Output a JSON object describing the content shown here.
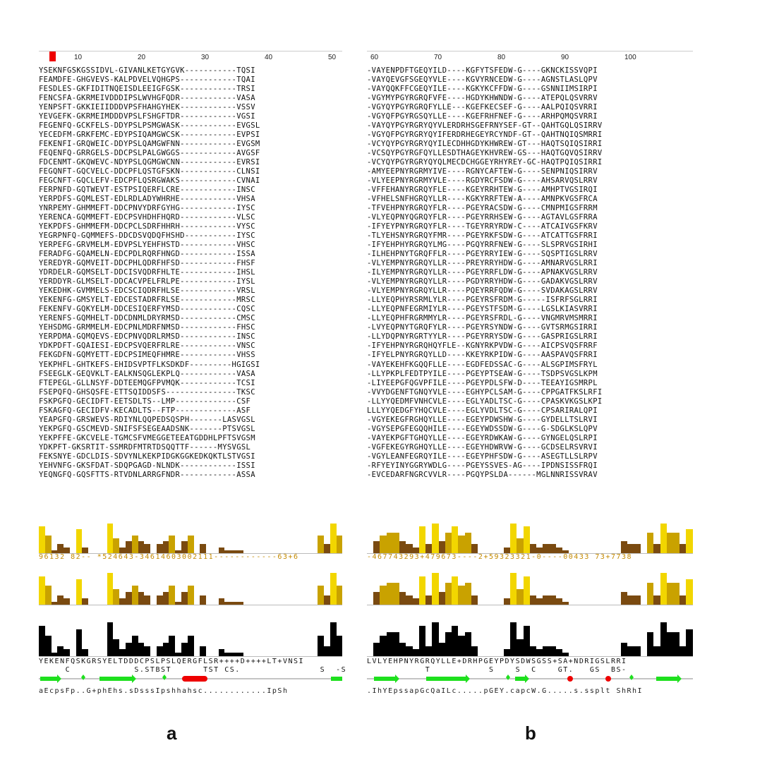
{
  "panels": {
    "a": {
      "label": "a",
      "ruler": [
        "10",
        "20",
        "30",
        "40",
        "50"
      ],
      "rows": [
        "YSEKNFGSKGSSIDVL-GIVANLKETGYGVK-----------TQSI",
        "FEAMDFE-GHGVEVS-KALPDVELVQHGPS------------TQAI",
        "FESDLES-GKFIDITNQEISDLEEIGFGSK------------TRSI",
        "FENCSFA-GKRMEIVDDDIPSLWVHGFQDR------------VASA",
        "YENPSFT-GKKIEIIDDDVPSFHAHGYHEK------------VSSV",
        "YEVGEFK-GKRMEIMDDDVPSLFSHGFTDR------------VGSI",
        "FEGENFQ-GCKFELS-DDYPSLPSMGWASK------------EVGSL",
        "YECEDFM-GRKFEMC-EDYPSIQAMGWCSK------------EVPSI",
        "FEKENFI-GRQWEIC-DDYPSLQAMGWFNN------------EVGSM",
        "FEQENFQ-GRRGELS-DDCPSLPALGWGGS------------AVGSF",
        "FDCENMT-GKQWEVC-NDYPSLQGMGWCNN------------EVRSI",
        "FEGQNFT-GQCVELC-DDCPFLQSTGFSKN------------CLNSI",
        "FEGCNFT-GQCLEFV-EDCPFLQSRGWAKS------------CVNAI",
        "FERPNFD-GQTWEVT-ESTPSIQERFLCRE------------INSC",
        "YERPDFS-GQMLEST-EDLRDLADYWHRHE------------VHSA",
        "YNRPEMY-GHMMEFT-DDCPNVYDRFGYHG------------IYSC",
        "YERENCA-GQMMEFT-EDCPSVHDHFHQRD------------VLSC",
        "YEKPDFS-GHMMEFM-DDCPCLSDRFHHRH------------VYSC",
        "YEGRPNFQ-GQMMEFS-DDCDSVQDQFHSHD-----------IYSC",
        "YERPEFG-GRVMELM-EDVPSLYEHFHSTD------------VHSC",
        "FERADFG-GQAMELN-EDCPDLRQRFHNGD------------ISSA",
        "YEREDYR-GQMVEIT-DDCPHLQDRFHFSD------------FHSF",
        "YDRDELR-GQMSELT-DDCISVQDRFHLTE------------IHSL",
        "YERDDYR-GLMSELT-DDCACVPELFRLPE------------IYSL",
        "YEKEDHK-GVMMELS-EDCSCIQDRFHLSE------------VRSL",
        "YEKENFG-GMSYELT-EDCESTADRFRLSE------------MRSC",
        "FEKENFV-GQKYELM-DDCESIQERFYMSD------------CQSC",
        "YERENFS-GQMHELT-DDCDNMLDRYRMSD------------CMSC",
        "YEHSDMG-GRMMELM-EDCPNLMDRFNMSD------------FHSC",
        "YERPDMA-GQMQEVS-EDCPNVQDRLRMSD------------INSC",
        "YDKPDFT-GQAIESI-EDCPSVQERFRLRE------------VNSC",
        "FEKGDFN-GQMYETT-EDCPSIMEQFHMRE------------VHSS",
        "YEKPHFL-GHTKEFS-EHIDSVPTFLKSDKDF---------HGIGSI",
        "FSEEGLK-GEQVKLT-EALKNSQGLEKPLQ------------VASA",
        "FTEPEGL-GLLNSYF-DDTEEMQGFPVMQK------------TCSI",
        "FSEPQFQ-GHSQSFE-ETTSQIDDSFS---------------TKSC",
        "FSKPGFQ-GECIDFT-EETSDLTS--LMP-------------CSF",
        "FSKAGFQ-GECIDFV-KECADLTS--FTP-------------ASF",
        "YEAPGFQ-GRSWEVS-RDIYNLQQPEDSQSPH-------LASVGSL",
        "YEKPGFQ-GSCMEVD-SNIFSFSEGEAADSNK-------PTSVGSL",
        "YEKPFFE-GKCVELE-TGMCSFVMEGGETEEATGDDHLPFTSVGSM",
        "YDKPFT-GKSRTIT-SSMRDFMTRTDSQQTTF------MYSVGSL",
        "FEKSNYE-GDCLDIS-SDVYNLKEKPIDGKGGKEDKQKTLSTVGSI",
        "YEHVNFG-GKSFDAT-SDQPGAGD-NLNDK------------ISSI",
        "YEQNGFQ-GQSFTTS-RTVDNLARRGFNDR------------ASSA"
      ],
      "hist_digits": "96132 82-- *524643-34614603002111------------63+6",
      "consensus": "YEKENFQSKGRSYELTDDDCPSLPSLQERGFLSR++++D++++LT+VNSI",
      "ss_text": "     C            S.STBST      TST CS.               S  -S  ",
      "footer": "aEcpsFp..G+phEhs.sDsssIpshhahsc............IpSh"
    },
    "b": {
      "label": "b",
      "ruler": [
        "60",
        "70",
        "80",
        "90",
        "100"
      ],
      "rows": [
        "-VAYENPDFTGEQYILD----KGFYTSFEDW-G----GKNCKISSVQPI",
        "-VAYQEVGFSGEQYVLE----KGVYRNCEDW-G----AGNSTLASLQPV",
        "-VAYQQKFFCGEQYILE----KGKYKCFFDW-G----GSNNIIMSIRPI",
        "-VGYMYPGYRGRQFVFE----HGDYKHWNDW-G----ATEPQLQSVRRV",
        "-VGYQYPGYRGRQFYLLE---KGEFKECSEF-G----AALPQIQSVRRI",
        "-VGYQFPGYRGSQYLLE----KGEFRHFNEF-G----ARHPQMQSVRRI",
        "-VAYQYPGYRGRYQYVLERDRHSGEFRNYSEF-GT--QAHTGQLQSIRRV",
        "-VGYQFPGYRGRYQYIFERDRHEGEYRCYNDF-GT--QAHTNQIQSMRRI",
        "-VCYQYPGYRGRYQYILECDHHGDYKHWREW-GT---HAQTSQIQSIRRI",
        "-VCSQYPGYRGFQYLLESDTHAGEYKHVREW-GS---HAQTGQVQSIRRV",
        "-VCYQYPGYRGRYQYQLMECDCHGGEYRHYREY-GC-HAQTPQIQSIRRI",
        "-AMYEEPNYRGRMYIVE----RGNYCAFTEW-G----SENPNIQSIRRV",
        "-VLYEEPNYRGRMYVLE----RGDYRCFSDW-G----AHSARVQSLRRV",
        "-VFFEHANYRGRQYFLE----KGEYRRHTEW-G----AMHPTVGSIRQI",
        "-VFHELSNFHGRQYLLR----KGKYRRFTEW-A----AMNPKVGSFRCA",
        "-TFVEHPNYRGRQYFLR----PGEYRACSDW-G----CMNPMIGSFRRM",
        "-VLYEQPNYQGRQYFLR----PGEYRRHSEW-G----AGTAVLGSFRRA",
        "-IFYEYPNYRGRQYFLR----TGEYRRYRDW-C----ATCAIVGSFKRV",
        "-TLYEHSNYRGRQYFMR----PGEYRKFSDW-G----ATCATTGSFRRI",
        "-IFYEHPHYRGRQYLMG----PGQYRRFNEW-G----SLSPRVGSIRHI",
        "-ILHEHPNYTGRQFFLR----PGEYRRYIEW-G----SQSPTIGSLRRV",
        "-VLYEMPNYRGRQYLLR----PREYRRYHDW-G----AMNARVGSLRRI",
        "-ILYEMPNYRGRQYLLR----PGEYRRFLDW-G----APNAKVGSLRRV",
        "-VLYEMPNYRGRQYLLR----PGDYRRYHDW-G----GADAKVGSLRRV",
        "-VLYEMPNYRGRQYLLR----PQEYRRFQDW-G----SVDAKAGSLRRV",
        "-LLYEQPHYRSRMLYLR----PGEYRSFRDM-G-----ISFRFSGLRRI",
        "-LLYEQPNFEGRMIYLR----PGEYSTFSDM-G----LGSLKIASVRRI",
        "-LLYEQPHFRGRMMYLR----PGEYRSFRDL-G----VNGMRVMSMRRI",
        "-LVYEQPNYTGRQFYLR----PGEYRSYNDW-G----GVTSRMGSIRRI",
        "-LLYDQPNYRGRTYYLR----PGEYRRYSDW-G----GASPRIGSLRRI",
        "-IFYEHPNYRGRQHQYFLE--KGNYRKPVDW-G----AICPSVQSFRRF",
        "-IFYELPNYRGRQYLLD----KKEYRKPIDW-G----AASPAVQSFRRI",
        "-VAYEKEHFKGQQFLLE----EGDFEDSSAC-G----ALSGPIMSFRYL",
        "-LLYPKPLFEDTPYILE----PGEYPTSEAW-G----TSDPSVGSLKPM",
        "-LIYEEPGFQGVPFILE----PGEYPDLSFW-D----TEEAYIGSMRPL",
        "-VVYDGENFTGNQYVLE----EGHYPCLSAM-G----CPPGATFKSLRFI",
        "-LLYYQEDMFVNHCVLE----EGLYADLTSC-G----CPASKVKGSLKPI",
        "LLLYYQEDGFYHQCVLE----EGLYVDLTSC-G----CPSARIRALQPI",
        "-VGYEKEGFRGHQYLLE----EGEYPDWSHW-G----GYDELLTSLRVI",
        "-VGYSEPGFEGQQHILE----EGEYWDSSDW-G----G-SDGLKSLQPV",
        "-VAYEKPGFTGHQYLLE----EGEYRDWKAW-G----GYNGELQSLRPI",
        "-VGFEKEGYRGHQYLLE----EGEYHDWRVW-G----GCDSELRSVRVI",
        "-VGYLEANFEGRQYILE----EGEYPHFSDW-G----ASEGTLLSLRPV",
        "-RFYEYINYGGRYWDLG----PGEYSSVES-AG----IPDNSISSFRQI",
        "-EVCEDARFNGRCVVLR----PGQYPSLDA------MGLNNRISSVRAV"
      ],
      "hist_digits": "-467743293+479673----2+59323321-0----00433 73+7738",
      "consensus": "LVLYEHPNYRGRQYLLE+DRHPGEYPDYSDWSGSS+SA+NDRIGSLRRI",
      "ss_text": "           T           S    S  C    GT.   GS  BS-    ",
      "footer": ".IhYEpssapGcQaILc.....pGEY.capcW.G.....s.ssplt ShRhI"
    }
  }
}
